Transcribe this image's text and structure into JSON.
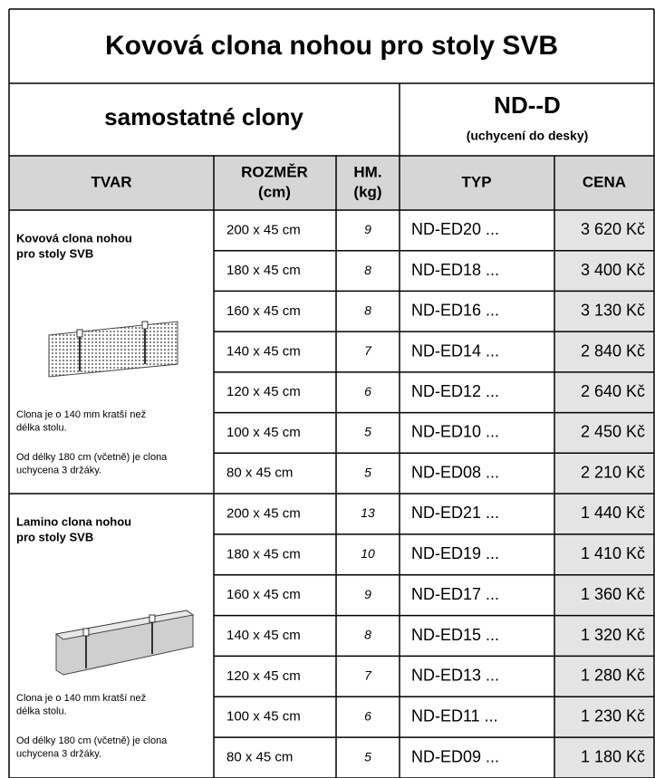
{
  "header": {
    "title": "Kovová clona nohou pro stoly SVB",
    "subtitle": "samostatné clony",
    "series_code": "ND--D",
    "series_note": "(uchycení do desky)"
  },
  "table": {
    "columns": [
      [
        "TVAR"
      ],
      [
        "ROZMĚR",
        "(cm)"
      ],
      [
        "HM.",
        "(kg)"
      ],
      [
        "TYP"
      ],
      [
        "CENA"
      ]
    ],
    "groups": [
      {
        "name_lines": [
          "Kovová clona nohou",
          "pro stoly SVB"
        ],
        "note1_lines": [
          "Clona je o 140 mm kratší než",
          "délka stolu."
        ],
        "note2_lines": [
          "Od délky 180 cm (včetně) je clona",
          "uchycena 3 držáky."
        ],
        "rows": [
          [
            "200 x 45 cm",
            "9",
            "ND-ED20 ...",
            "3 620 Kč"
          ],
          [
            "180 x 45 cm",
            "8",
            "ND-ED18 ...",
            "3 400 Kč"
          ],
          [
            "160 x 45 cm",
            "8",
            "ND-ED16 ...",
            "3 130 Kč"
          ],
          [
            "140 x 45 cm",
            "7",
            "ND-ED14 ...",
            "2 840 Kč"
          ],
          [
            "120 x 45 cm",
            "6",
            "ND-ED12 ...",
            "2 640 Kč"
          ],
          [
            "100 x 45 cm",
            "5",
            "ND-ED10 ...",
            "2 450 Kč"
          ],
          [
            "80 x 45 cm",
            "5",
            "ND-ED08 ...",
            "2 210 Kč"
          ]
        ]
      },
      {
        "name_lines": [
          "Lamino clona nohou",
          "pro stoly SVB"
        ],
        "note1_lines": [
          "Clona je o 140 mm kratší než",
          "délka stolu."
        ],
        "note2_lines": [
          "Od délky 180 cm (včetně) je clona",
          "uchycena 3 držáky."
        ],
        "rows": [
          [
            "200 x 45 cm",
            "13",
            "ND-ED21 ...",
            "1 440 Kč"
          ],
          [
            "180 x 45 cm",
            "10",
            "ND-ED19 ...",
            "1 410 Kč"
          ],
          [
            "160 x 45 cm",
            "9",
            "ND-ED17 ...",
            "1 360 Kč"
          ],
          [
            "140 x 45 cm",
            "8",
            "ND-ED15 ...",
            "1 320 Kč"
          ],
          [
            "120 x 45 cm",
            "7",
            "ND-ED13 ...",
            "1 280 Kč"
          ],
          [
            "100 x 45 cm",
            "6",
            "ND-ED11 ...",
            "1 230 Kč"
          ],
          [
            "80 x 45 cm",
            "5",
            "ND-ED09 ...",
            "1 180 Kč"
          ]
        ]
      }
    ]
  }
}
